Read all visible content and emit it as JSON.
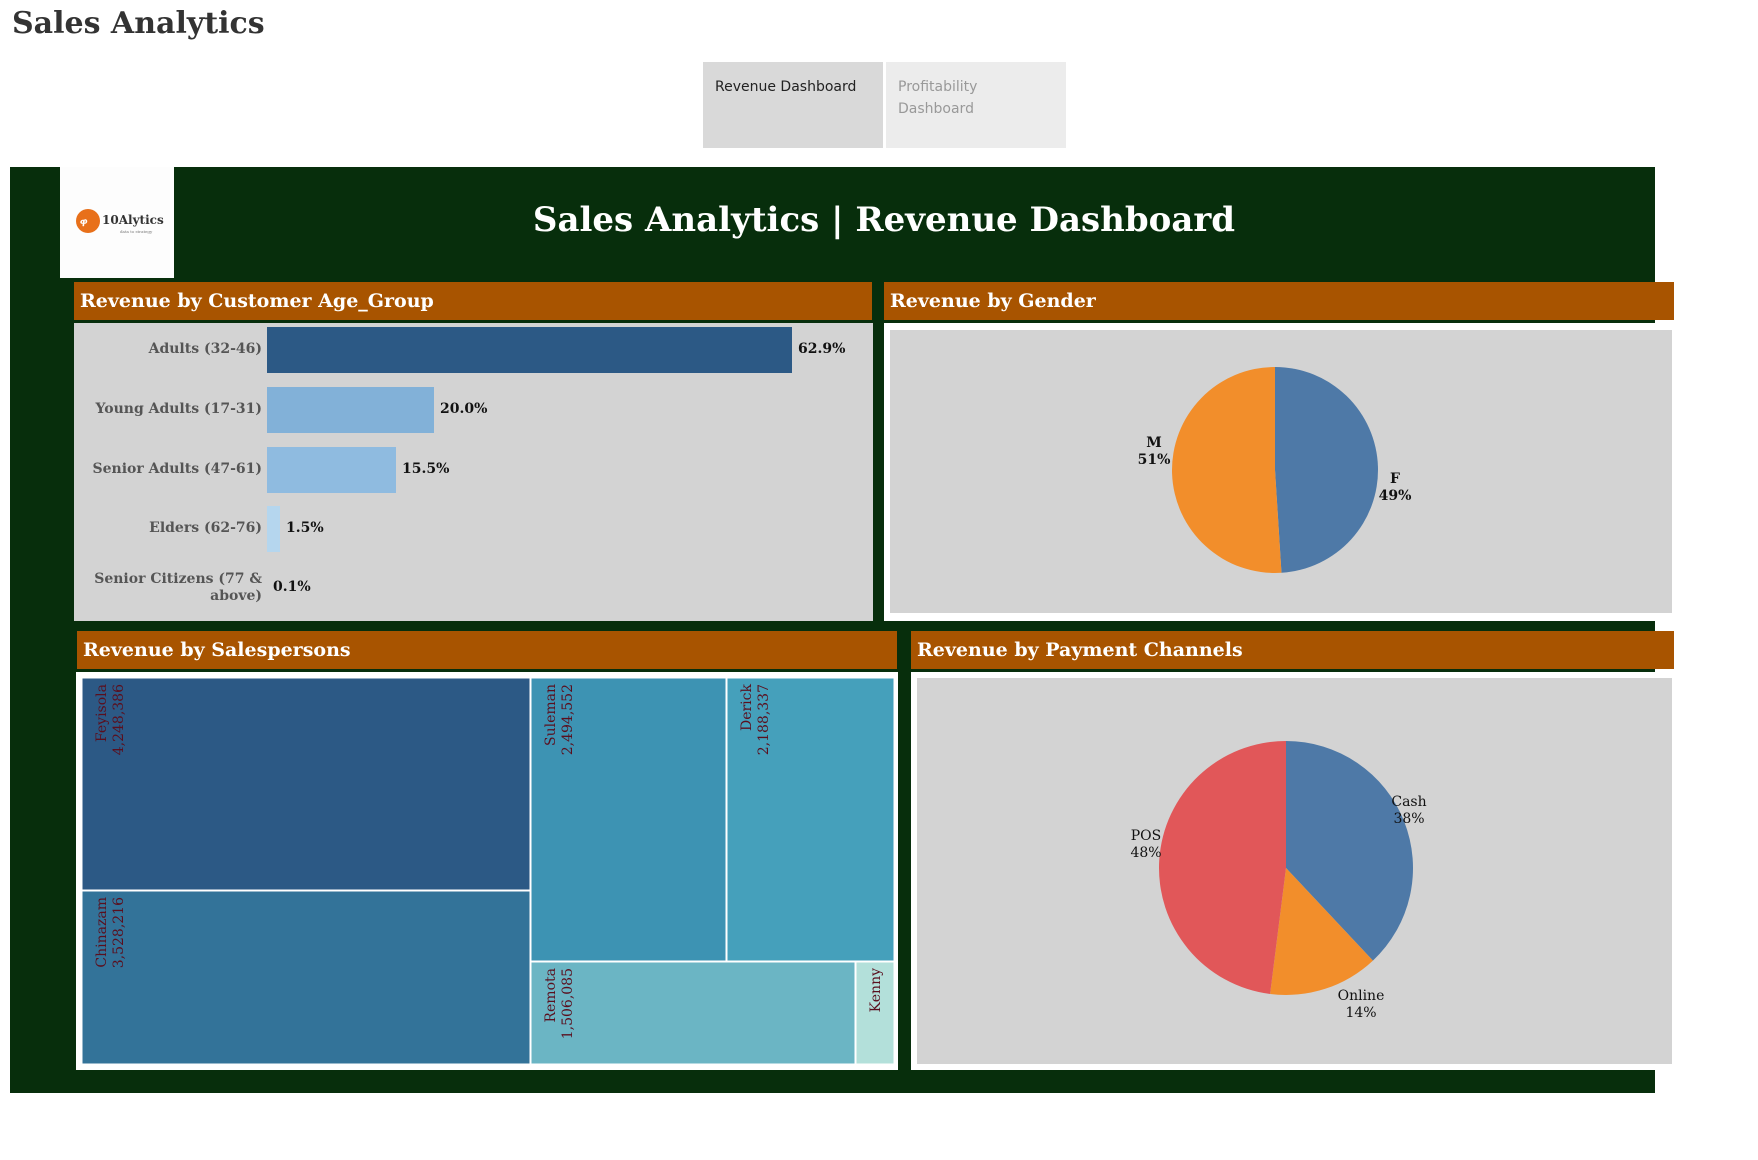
{
  "app": {
    "title": "Sales Analytics"
  },
  "tabs": [
    {
      "label": "Revenue Dashboard",
      "active": true
    },
    {
      "label": "Profitability Dashboard",
      "active": false
    }
  ],
  "dashboard": {
    "title": "Sales Analytics | Revenue Dashboard",
    "logo": {
      "text": "10Alytics",
      "tagline": "data to strategy",
      "colors": {
        "mark": "#e8701a",
        "text": "#333333"
      }
    },
    "colors": {
      "background": "#072e0c",
      "panel_header": "#a85400",
      "panel_body": "#d3d3d3"
    }
  },
  "panels": {
    "age_group": {
      "title": "Revenue by Customer Age_Group"
    },
    "gender": {
      "title": "Revenue by Gender"
    },
    "salespersons": {
      "title": "Revenue by Salespersons"
    },
    "payment": {
      "title": "Revenue by Payment Channels"
    }
  },
  "chart_data": [
    {
      "type": "bar",
      "orientation": "horizontal",
      "categories": [
        "Adults (32-46)",
        "Young Adults (17-31)",
        "Senior Adults (47-61)",
        "Elders (62-76)",
        "Senior Citizens (77 & above)"
      ],
      "values": [
        62.9,
        20.0,
        15.5,
        1.5,
        0.1
      ],
      "labels": [
        "62.9%",
        "20.0%",
        "15.5%",
        "1.5%",
        "0.1%"
      ],
      "colors": [
        "#2c5985",
        "#82b1d8",
        "#8fbbe0",
        "#b5d6ee",
        "#cfe4f4"
      ]
    },
    {
      "type": "pie",
      "slices": [
        {
          "label": "F",
          "value": 49,
          "pct_label": "49%",
          "color": "#4e79a7"
        },
        {
          "label": "M",
          "value": 51,
          "pct_label": "51%",
          "color": "#f28e2b"
        }
      ]
    },
    {
      "type": "treemap",
      "items": [
        {
          "name": "Feyisola",
          "value": 4248386,
          "label": "4,248,386",
          "color": "#2c5985"
        },
        {
          "name": "Chinazam",
          "value": 3528216,
          "label": "3,528,216",
          "color": "#337399"
        },
        {
          "name": "Suleman",
          "value": 2494552,
          "label": "2,494,552",
          "color": "#3d93b3"
        },
        {
          "name": "Derick",
          "value": 2188337,
          "label": "2,188,337",
          "color": "#45a0bb"
        },
        {
          "name": "Remota",
          "value": 1506085,
          "label": "1,506,085",
          "color": "#6bb5c4"
        },
        {
          "name": "Kenny",
          "value": null,
          "label": "",
          "color": "#b3e0da"
        }
      ]
    },
    {
      "type": "pie",
      "slices": [
        {
          "label": "Cash",
          "value": 38,
          "pct_label": "38%",
          "color": "#4e79a7"
        },
        {
          "label": "Online",
          "value": 14,
          "pct_label": "14%",
          "color": "#f28e2b"
        },
        {
          "label": "POS",
          "value": 48,
          "pct_label": "48%",
          "color": "#e15759"
        }
      ]
    }
  ]
}
